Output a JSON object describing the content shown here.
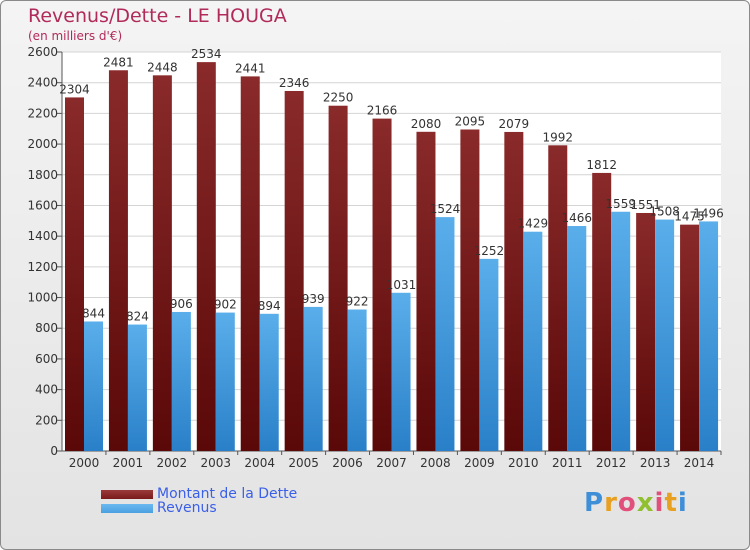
{
  "title": "Revenus/Dette - LE HOUGA",
  "subtitle": "(en milliers d'€)",
  "logo_text": "Proxiti",
  "colors": {
    "dette": "#7a1a1a",
    "revenus": "#4aa0e0",
    "title": "#b02a5a",
    "legend_text": "#3a5fe8"
  },
  "chart_data": {
    "type": "bar",
    "categories": [
      "2000",
      "2001",
      "2002",
      "2003",
      "2004",
      "2005",
      "2006",
      "2007",
      "2008",
      "2009",
      "2010",
      "2011",
      "2012",
      "2013",
      "2014"
    ],
    "series": [
      {
        "name": "Montant de la Dette",
        "values": [
          2304,
          2481,
          2448,
          2534,
          2441,
          2346,
          2250,
          2166,
          2080,
          2095,
          2079,
          1992,
          1812,
          1551,
          1475
        ]
      },
      {
        "name": "Revenus",
        "values": [
          844,
          824,
          906,
          902,
          894,
          939,
          922,
          1031,
          1524,
          1252,
          1429,
          1466,
          1559,
          1508,
          1496
        ]
      }
    ],
    "ylim": [
      0,
      2600
    ],
    "yticks": [
      0,
      200,
      400,
      600,
      800,
      1000,
      1200,
      1400,
      1600,
      1800,
      2000,
      2200,
      2400,
      2600
    ],
    "grid": true,
    "legend_position": "bottom-left"
  }
}
